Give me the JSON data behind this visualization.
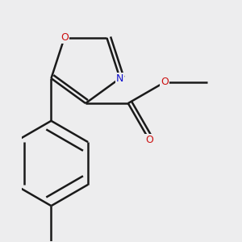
{
  "background_color": "#ededee",
  "bond_color": "#1a1a1a",
  "bond_width": 1.8,
  "atom_colors": {
    "N": "#1010cc",
    "O": "#cc1010",
    "C": "#1a1a1a"
  },
  "figsize": [
    3.0,
    3.0
  ],
  "dpi": 100
}
